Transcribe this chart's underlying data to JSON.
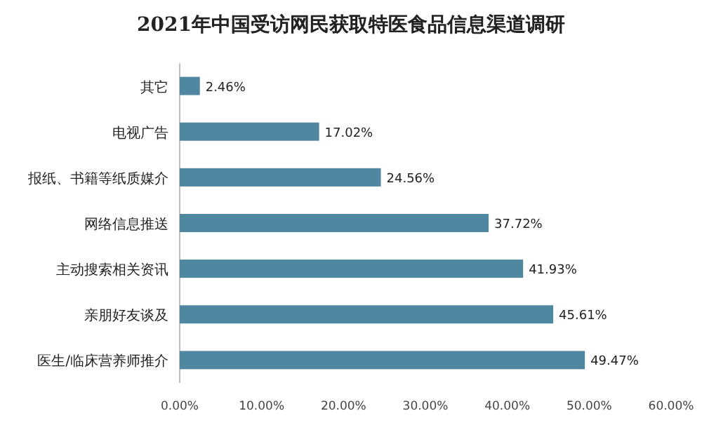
{
  "chart_data": {
    "type": "bar",
    "orientation": "horizontal",
    "title": "2021年中国受访网民获取特医食品信息渠道调研",
    "categories": [
      "其它",
      "电视广告",
      "报纸、书籍等纸质媒介",
      "网络信息推送",
      "主动搜索相关资讯",
      "亲朋好友谈及",
      "医生/临床营养师推介"
    ],
    "values": [
      2.46,
      17.02,
      24.56,
      37.72,
      41.93,
      45.61,
      49.47
    ],
    "value_labels": [
      "2.46%",
      "17.02%",
      "24.56%",
      "37.72%",
      "41.93%",
      "45.61%",
      "49.47%"
    ],
    "color": "#4f86a0",
    "xlim": [
      0,
      60
    ],
    "xticks": [
      {
        "value": 0,
        "label": "0.00%"
      },
      {
        "value": 10,
        "label": "10.00%"
      },
      {
        "value": 20,
        "label": "20.00%"
      },
      {
        "value": 30,
        "label": "30.00%"
      },
      {
        "value": 40,
        "label": "40.00%"
      },
      {
        "value": 50,
        "label": "50.00%"
      },
      {
        "value": 60,
        "label": "60.00%"
      }
    ]
  }
}
